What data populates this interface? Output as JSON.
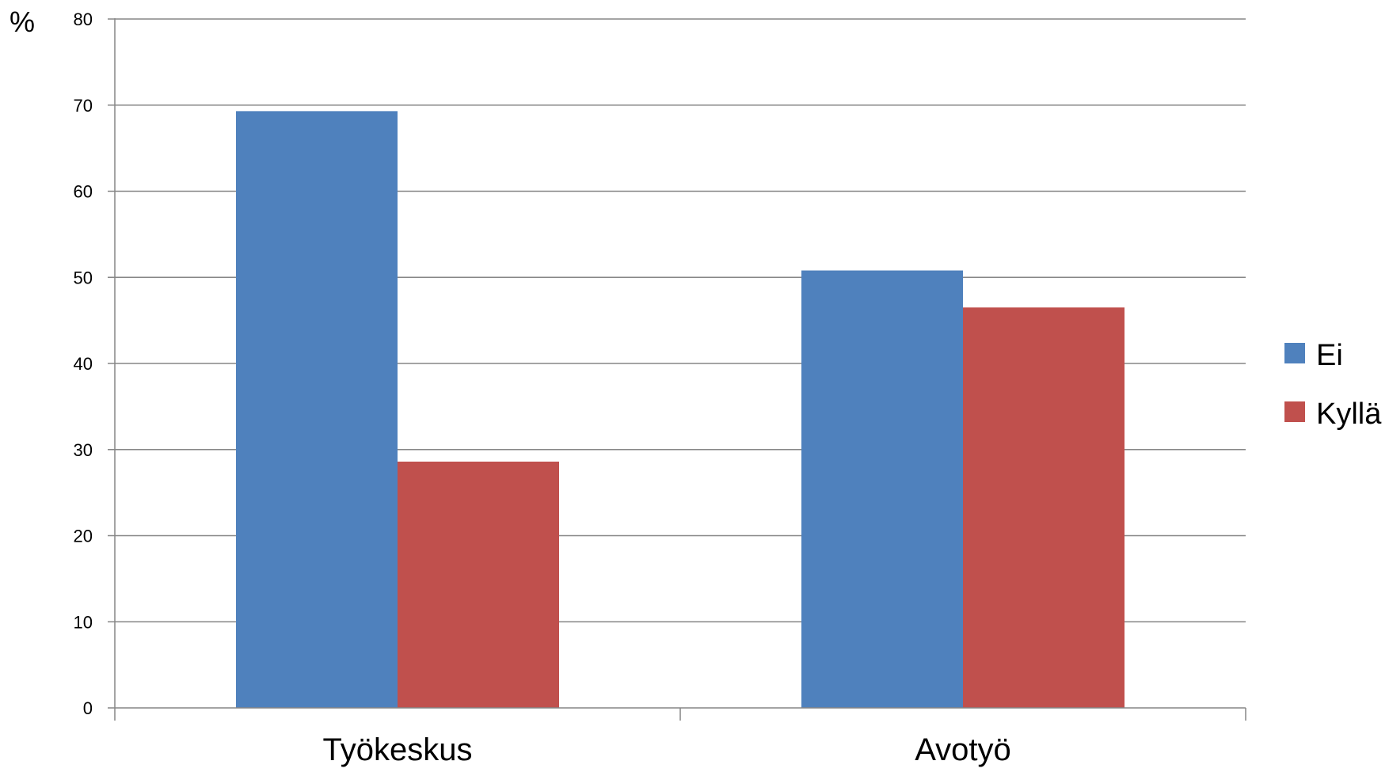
{
  "chart_data": {
    "type": "bar",
    "ylabel": "%",
    "ylim": [
      0,
      80
    ],
    "yticks": [
      0,
      10,
      20,
      30,
      40,
      50,
      60,
      70,
      80
    ],
    "grid": true,
    "legend_position": "right",
    "categories": [
      "Työkeskus",
      "Avotyö"
    ],
    "series": [
      {
        "name": "Ei",
        "color": "#4F81BD",
        "values": [
          69.3,
          50.8
        ]
      },
      {
        "name": "Kyllä",
        "color": "#C0504D",
        "values": [
          28.6,
          46.5
        ]
      }
    ]
  }
}
